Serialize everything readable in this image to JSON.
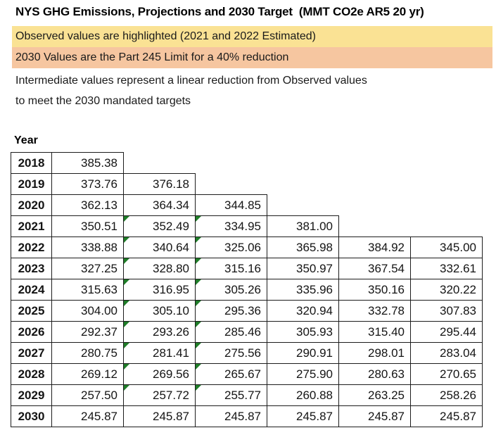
{
  "title": "NYS GHG Emissions, Projections and 2030 Target  (MMT CO2e AR5 20 yr)",
  "notes": {
    "observed": "Observed values are highlighted (2021 and 2022 Estimated)",
    "limit": "2030 Values are the Part 245 Limit for a 40% reduction",
    "intermediate_line1": "Intermediate values represent a linear reduction from Observed values",
    "intermediate_line2": "to meet the 2030 mandated targets"
  },
  "colors": {
    "banner_yellow": "#FAE294",
    "banner_orange": "#F6C6A0",
    "observed_cell_yellow": "#FCE492",
    "target_cell_orange": "#F8CCAD",
    "flag_green": "#1F7D28"
  },
  "table": {
    "year_header": "Year",
    "rows": [
      {
        "year": "2018",
        "values": [
          "385.38"
        ],
        "highlight": [
          0
        ],
        "flags": [],
        "target_row": false
      },
      {
        "year": "2019",
        "values": [
          "373.76",
          "376.18"
        ],
        "highlight": [
          1
        ],
        "flags": [],
        "target_row": false
      },
      {
        "year": "2020",
        "values": [
          "362.13",
          "364.34",
          "344.85"
        ],
        "highlight": [
          2
        ],
        "flags": [],
        "target_row": false
      },
      {
        "year": "2021",
        "values": [
          "350.51",
          "352.49",
          "334.95",
          "381.00"
        ],
        "highlight": [
          3
        ],
        "flags": [
          1,
          2
        ],
        "target_row": false
      },
      {
        "year": "2022",
        "values": [
          "338.88",
          "340.64",
          "325.06",
          "365.98",
          "384.92",
          "345.00"
        ],
        "highlight": [
          4,
          5
        ],
        "flags": [
          1,
          2
        ],
        "target_row": false
      },
      {
        "year": "2023",
        "values": [
          "327.25",
          "328.80",
          "315.16",
          "350.97",
          "367.54",
          "332.61"
        ],
        "highlight": [],
        "flags": [
          1,
          2
        ],
        "target_row": false
      },
      {
        "year": "2024",
        "values": [
          "315.63",
          "316.95",
          "305.26",
          "335.96",
          "350.16",
          "320.22"
        ],
        "highlight": [],
        "flags": [
          1,
          2
        ],
        "target_row": false
      },
      {
        "year": "2025",
        "values": [
          "304.00",
          "305.10",
          "295.36",
          "320.94",
          "332.78",
          "307.83"
        ],
        "highlight": [],
        "flags": [
          1,
          2
        ],
        "target_row": false
      },
      {
        "year": "2026",
        "values": [
          "292.37",
          "293.26",
          "285.46",
          "305.93",
          "315.40",
          "295.44"
        ],
        "highlight": [],
        "flags": [
          1,
          2
        ],
        "target_row": false
      },
      {
        "year": "2027",
        "values": [
          "280.75",
          "281.41",
          "275.56",
          "290.91",
          "298.01",
          "283.04"
        ],
        "highlight": [],
        "flags": [
          1,
          2
        ],
        "target_row": false
      },
      {
        "year": "2028",
        "values": [
          "269.12",
          "269.56",
          "265.67",
          "275.90",
          "280.63",
          "270.65"
        ],
        "highlight": [],
        "flags": [
          1,
          2
        ],
        "target_row": false
      },
      {
        "year": "2029",
        "values": [
          "257.50",
          "257.72",
          "255.77",
          "260.88",
          "263.25",
          "258.26"
        ],
        "highlight": [],
        "flags": [
          1,
          2
        ],
        "target_row": false
      },
      {
        "year": "2030",
        "values": [
          "245.87",
          "245.87",
          "245.87",
          "245.87",
          "245.87",
          "245.87"
        ],
        "highlight": [],
        "flags": [],
        "target_row": true
      }
    ]
  }
}
